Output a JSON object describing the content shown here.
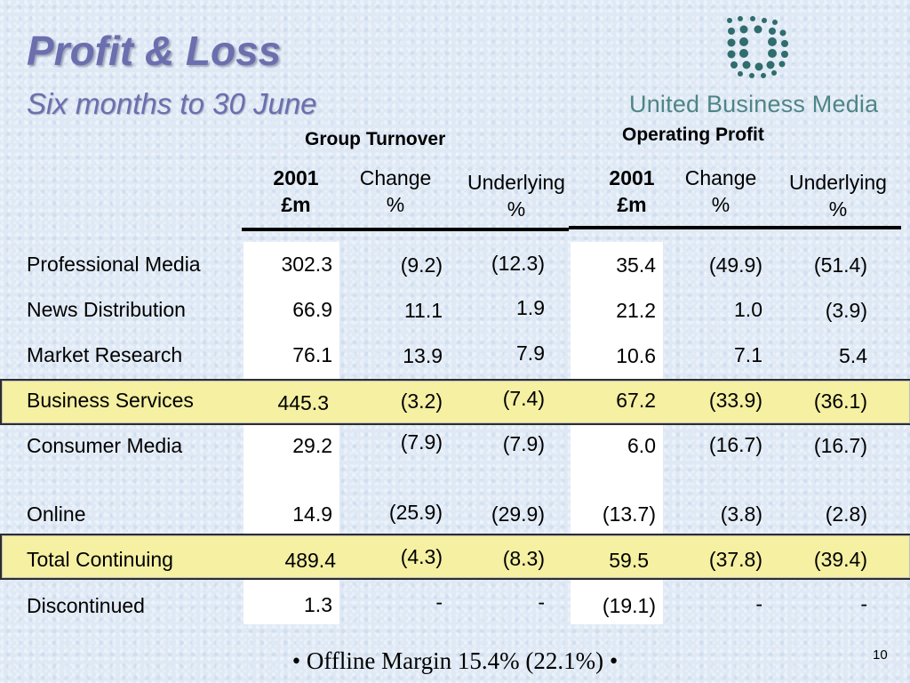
{
  "title": "Profit & Loss",
  "subtitle": "Six months to 30 June",
  "logo": {
    "name": "United Business Media",
    "icon": "dot-cluster-logo-icon"
  },
  "groups": {
    "turnover": "Group Turnover",
    "profit": "Operating Profit"
  },
  "headers": {
    "t_2001": [
      "2001",
      "£m"
    ],
    "t_change": [
      "Change",
      "%"
    ],
    "t_under": [
      "Underlying",
      "%"
    ],
    "p_2001": [
      "2001",
      "£m"
    ],
    "p_change": [
      "Change",
      "%"
    ],
    "p_under": [
      "Underlying",
      "%"
    ]
  },
  "rows": [
    {
      "label": "Professional Media",
      "v": [
        "302.3",
        "(9.2)",
        "(12.3)",
        "35.4",
        "(49.9)",
        "(51.4)"
      ]
    },
    {
      "label": "News Distribution",
      "v": [
        "66.9",
        "11.1",
        "1.9",
        "21.2",
        "1.0",
        "(3.9)"
      ]
    },
    {
      "label": "Market Research",
      "v": [
        "76.1",
        "13.9",
        "7.9",
        "10.6",
        "7.1",
        "5.4"
      ]
    },
    {
      "label": "Business Services",
      "v": [
        "445.3",
        "(3.2)",
        "(7.4)",
        "67.2",
        "(33.9)",
        "(36.1)"
      ]
    },
    {
      "label": "Consumer Media",
      "v": [
        "29.2",
        "(7.9)",
        "(7.9)",
        "6.0",
        "(16.7)",
        "(16.7)"
      ]
    },
    {
      "label": "Online",
      "v": [
        "14.9",
        "(25.9)",
        "(29.9)",
        "(13.7)",
        "(3.8)",
        "(2.8)"
      ]
    },
    {
      "label": "Total Continuing",
      "v": [
        "489.4",
        "(4.3)",
        "(8.3)",
        "59.5",
        "(37.8)",
        "(39.4)"
      ]
    },
    {
      "label": "Discontinued",
      "v": [
        "1.3",
        "-",
        "-",
        "(19.1)",
        "-",
        "-"
      ]
    }
  ],
  "footer": "• Offline Margin 15.4% (22.1%) •",
  "page_number": "10",
  "colors": {
    "title": "#6b6fae",
    "highlight": "#f5f0a2",
    "logo": "#4e8586"
  }
}
